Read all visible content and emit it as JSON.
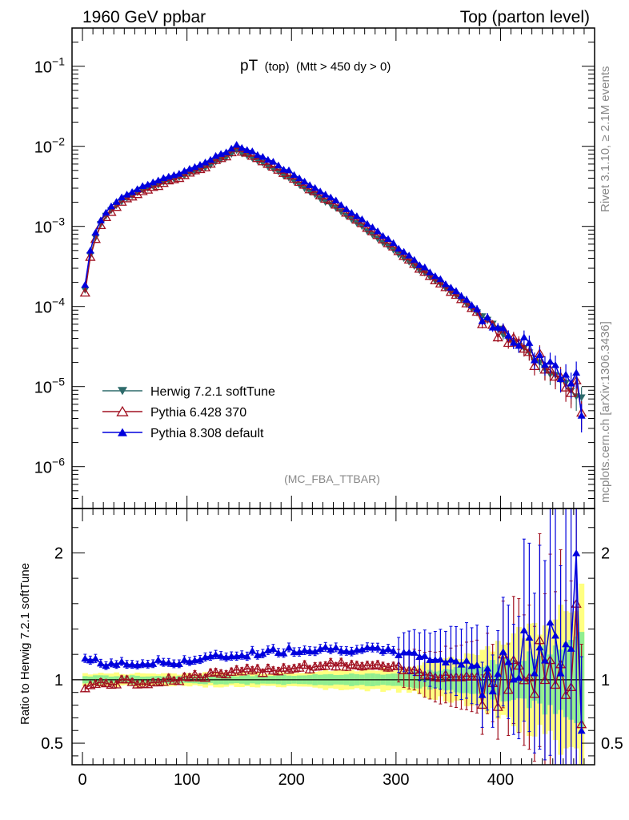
{
  "header": {
    "left_title": "1960 GeV ppbar",
    "right_title": "Top (parton level)"
  },
  "plot_title": {
    "main": "pT",
    "sub1": "(top)",
    "sub2": "(Mtt > 450 dy > 0)"
  },
  "side_labels": {
    "rivet": "Rivet 3.1.10, ≥ 2.1M events",
    "mcplots": "mcplots.cern.ch [arXiv:1306.3436]"
  },
  "analysis_tag": "(MC_FBA_TTBAR)",
  "ratio_ylabel": "Ratio to Herwig 7.2.1 softTune",
  "colors": {
    "herwig": "#2e6b6b",
    "pythia6": "#a01020",
    "pythia8": "#0000dd",
    "band_green": "#90ee90",
    "band_yellow": "#ffff80"
  },
  "chart_data": [
    {
      "type": "line",
      "yscale": "log",
      "xlim": [
        -10,
        490
      ],
      "ylim": [
        3e-07,
        0.3
      ],
      "x_ticks": [
        0,
        100,
        200,
        300,
        400
      ],
      "y_ticks": [
        {
          "value": 1e-06,
          "base": "10",
          "exp": "−6"
        },
        {
          "value": 1e-05,
          "base": "10",
          "exp": "−5"
        },
        {
          "value": 0.0001,
          "base": "10",
          "exp": "−4"
        },
        {
          "value": 0.001,
          "base": "10",
          "exp": "−3"
        },
        {
          "value": 0.01,
          "base": "10",
          "exp": "−2"
        },
        {
          "value": 0.1,
          "base": "10",
          "exp": "−1"
        }
      ],
      "legend_position": "bottom-left",
      "series": [
        {
          "name": "Herwig 7.2.1 softTune",
          "marker": "triangle-down",
          "color": "#2e6b6b"
        },
        {
          "name": "Pythia 6.428 370",
          "marker": "triangle-up-open",
          "color": "#a01020"
        },
        {
          "name": "Pythia 8.308 default",
          "marker": "triangle-up",
          "color": "#0000dd"
        }
      ],
      "reference_shape": {
        "x": [
          2.5,
          7.5,
          15,
          25,
          40,
          60,
          80,
          100,
          120,
          135,
          147.5,
          160,
          180,
          200,
          220,
          250,
          280,
          300,
          320,
          350,
          380,
          400,
          420,
          440,
          460,
          477.5
        ],
        "y": [
          0.00016,
          0.00044,
          0.00095,
          0.0015,
          0.0022,
          0.0029,
          0.0036,
          0.0044,
          0.0056,
          0.007,
          0.0088,
          0.0074,
          0.0054,
          0.0038,
          0.0026,
          0.00145,
          0.00074,
          0.00047,
          0.0003,
          0.00016,
          8e-05,
          5e-05,
          3e-05,
          1.8e-05,
          1.1e-05,
          7e-06
        ]
      }
    },
    {
      "type": "line",
      "xlim": [
        -10,
        490
      ],
      "ylim": [
        0.33,
        2.35
      ],
      "x_ticks": [
        0,
        100,
        200,
        300,
        400
      ],
      "y_ticks": [
        0.5,
        1,
        2
      ],
      "y_tick_labels": [
        "0.5",
        "1",
        "2"
      ],
      "ratio_trend": {
        "pythia8": {
          "x": [
            0,
            30,
            60,
            100,
            150,
            200,
            250,
            300,
            350,
            400,
            450,
            477.5
          ],
          "y": [
            1.17,
            1.12,
            1.13,
            1.15,
            1.2,
            1.24,
            1.25,
            1.22,
            1.15,
            1.1,
            1.25,
            1.2
          ]
        },
        "pythia6": {
          "x": [
            0,
            30,
            60,
            100,
            150,
            200,
            250,
            300,
            350,
            400,
            450,
            477.5
          ],
          "y": [
            0.95,
            0.98,
            0.98,
            1.02,
            1.06,
            1.1,
            1.12,
            1.09,
            1.03,
            1.02,
            1.1,
            0.8
          ]
        },
        "band_green_half_width": {
          "x": [
            0,
            100,
            200,
            300,
            350,
            400,
            440,
            477.5
          ],
          "y": [
            0.03,
            0.03,
            0.035,
            0.05,
            0.08,
            0.14,
            0.22,
            0.35
          ]
        },
        "band_yellow_half_width": {
          "x": [
            0,
            100,
            200,
            300,
            350,
            400,
            440,
            477.5
          ],
          "y": [
            0.05,
            0.05,
            0.06,
            0.09,
            0.15,
            0.3,
            0.45,
            0.7
          ]
        }
      }
    }
  ]
}
